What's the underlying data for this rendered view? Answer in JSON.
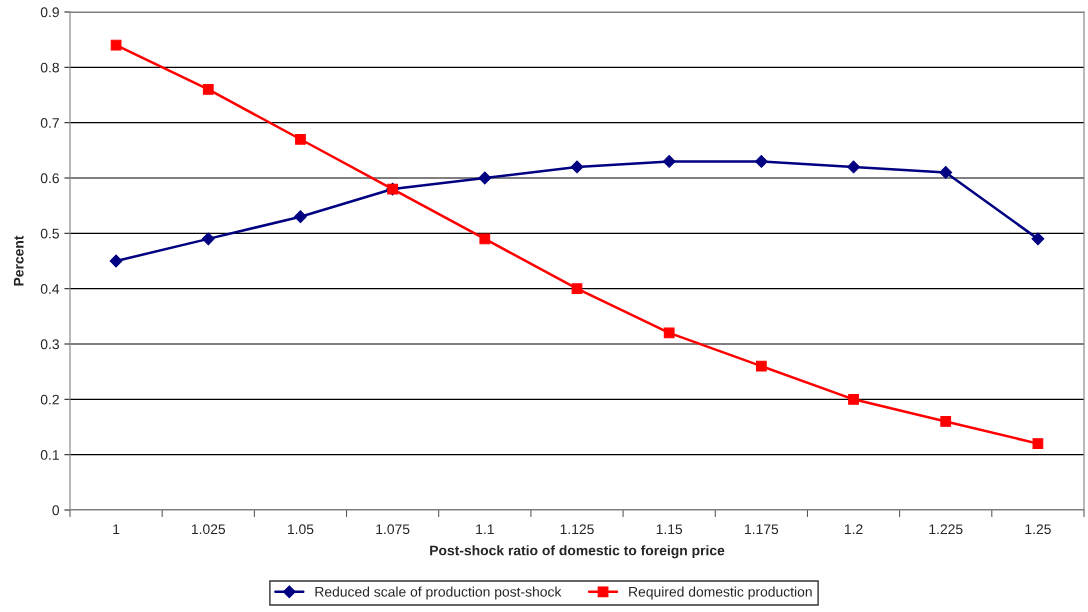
{
  "chart_data": {
    "type": "line",
    "xlabel": "Post-shock ratio of domestic to foreign price",
    "ylabel": "Percent",
    "categories": [
      "1",
      "1.025",
      "1.05",
      "1.075",
      "1.1",
      "1.125",
      "1.15",
      "1.175",
      "1.2",
      "1.225",
      "1.25"
    ],
    "series": [
      {
        "name": "Reduced scale of production post-shock",
        "color": "#000080",
        "marker": "diamond",
        "values": [
          0.45,
          0.49,
          0.53,
          0.58,
          0.6,
          0.62,
          0.63,
          0.63,
          0.62,
          0.61,
          0.49
        ]
      },
      {
        "name": "Required domestic production",
        "color": "#ff0000",
        "marker": "square",
        "values": [
          0.84,
          0.76,
          0.67,
          0.58,
          0.49,
          0.4,
          0.32,
          0.26,
          0.2,
          0.16,
          0.12
        ]
      }
    ],
    "ylim": [
      0,
      0.9
    ],
    "yticks": [
      0,
      0.1,
      0.2,
      0.3,
      0.4,
      0.5,
      0.6,
      0.7,
      0.8,
      0.9
    ],
    "grid": "y",
    "legend": "bottom",
    "line_style": "solid"
  }
}
